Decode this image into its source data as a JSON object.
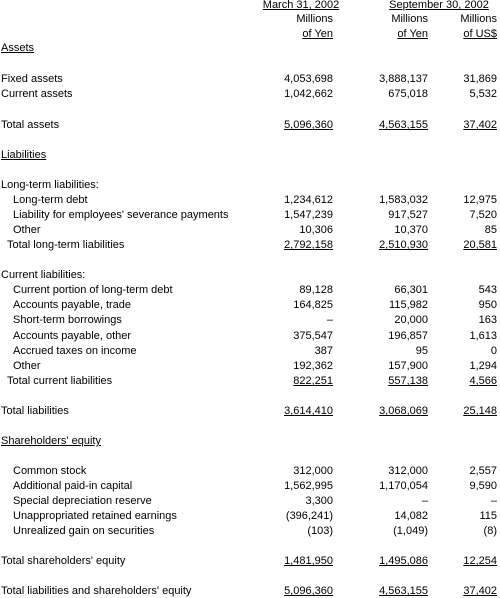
{
  "header": {
    "dates": [
      "March 31, 2002",
      "September 30, 2002"
    ],
    "columns": [
      [
        "Millions",
        "of Yen"
      ],
      [
        "Millions",
        "of Yen"
      ],
      [
        "Millions",
        "of US$"
      ]
    ]
  },
  "rows": [
    {
      "label": "Assets"
    },
    {
      "label": "Fixed assets",
      "values": [
        "4,053,698",
        "3,888,137",
        "31,869"
      ]
    },
    {
      "label": "Current assets",
      "values": [
        "1,042,662",
        "675,018",
        "5,532"
      ]
    },
    {
      "label": "Total assets",
      "values": [
        "5,096,360",
        "4,563,155",
        "37,402"
      ]
    },
    {
      "label": "Liabilities"
    },
    {
      "label": "Long-term liabilities:"
    },
    {
      "label": "Long-term debt",
      "values": [
        "1,234,612",
        "1,583,032",
        "12,975"
      ]
    },
    {
      "label": "Liability for employees' severance payments",
      "values": [
        "1,547,239",
        "917,527",
        "7,520"
      ]
    },
    {
      "label": "Other",
      "values": [
        "10,306",
        "10,370",
        "85"
      ]
    },
    {
      "label": "Total long-term liabilities",
      "values": [
        "2,792,158",
        "2,510,930",
        "20,581"
      ]
    },
    {
      "label": "Current liabilities:"
    },
    {
      "label": "Current portion of long-term debt",
      "values": [
        "89,128",
        "66,301",
        "543"
      ]
    },
    {
      "label": "Accounts payable, trade",
      "values": [
        "164,825",
        "115,982",
        "950"
      ]
    },
    {
      "label": "Short-term borrowings",
      "values": [
        "–",
        "20,000",
        "163"
      ]
    },
    {
      "label": "Accounts payable, other",
      "values": [
        "375,547",
        "196,857",
        "1,613"
      ]
    },
    {
      "label": "Accrued taxes on income",
      "values": [
        "387",
        "95",
        "0"
      ]
    },
    {
      "label": "Other",
      "values": [
        "192,362",
        "157,900",
        "1,294"
      ]
    },
    {
      "label": "Total current liabilities",
      "values": [
        "822,251",
        "557,138",
        "4,566"
      ]
    },
    {
      "label": "Total liabilities",
      "values": [
        "3,614,410",
        "3,068,069",
        "25,148"
      ]
    },
    {
      "label": "Shareholders' equity"
    },
    {
      "label": "Common stock",
      "values": [
        "312,000",
        "312,000",
        "2,557"
      ]
    },
    {
      "label": "Additional paid-in capital",
      "values": [
        "1,562,995",
        "1,170,054",
        "9,590"
      ]
    },
    {
      "label": "Special depreciation reserve",
      "values": [
        "3,300",
        "–",
        "–"
      ]
    },
    {
      "label": "Unappropriated retained earnings",
      "values": [
        "(396,241)",
        "14,082",
        "115"
      ]
    },
    {
      "label": "Unrealized gain on securities",
      "values": [
        "(103)",
        "(1,049)",
        "(8)"
      ]
    },
    {
      "label": "Total shareholders' equity",
      "values": [
        "1,481,950",
        "1,495,086",
        "12,254"
      ]
    },
    {
      "label": "Total liabilities and shareholders' equity",
      "values": [
        "5,096,360",
        "4,563,155",
        "37,402"
      ]
    }
  ]
}
